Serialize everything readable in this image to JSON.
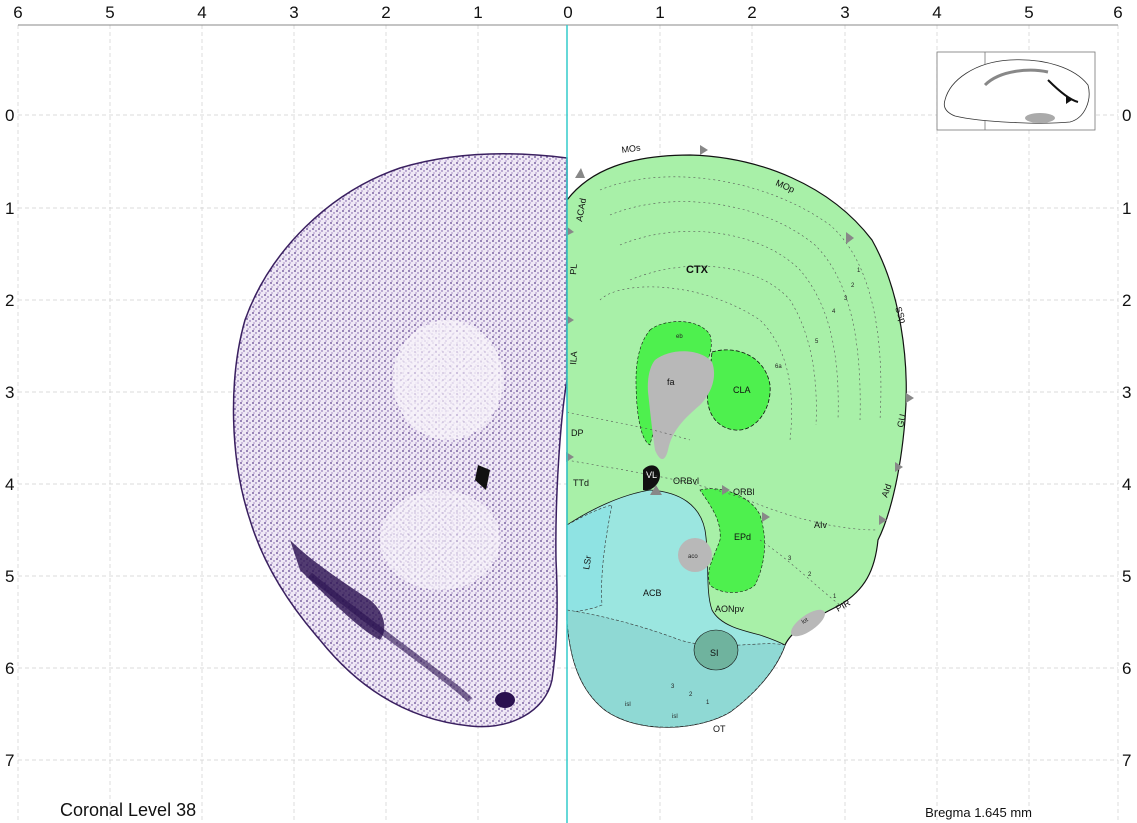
{
  "atlas": {
    "title": "Coronal Level 38",
    "bregma": "Bregma 1.645 mm",
    "x_ticks": [
      "6",
      "5",
      "4",
      "3",
      "2",
      "1",
      "0",
      "1",
      "2",
      "3",
      "4",
      "5",
      "6"
    ],
    "y_ticks": [
      "0",
      "1",
      "2",
      "3",
      "4",
      "5",
      "6",
      "7"
    ],
    "colors": {
      "cortex": "#a8f0a8",
      "cortex_bright": "#4ef04e",
      "striatum": "#9be6e0",
      "pallidum": "#8fd9d4",
      "fiber": "#b8b8b8",
      "nissl": "#5a3d8a",
      "midline": "#33cccc"
    },
    "regions": {
      "ctx": "CTX",
      "mos": "MOs",
      "mop": "MOp",
      "ssp": "SSp",
      "gu": "GU",
      "aid": "AId",
      "aiv": "AIv",
      "pir": "PIR",
      "lot": "lot",
      "acad": "ACAd",
      "pl": "PL",
      "ila": "ILA",
      "dp": "DP",
      "ttd": "TTd",
      "vl": "VL",
      "orbvl": "ORBvl",
      "orbl": "ORBl",
      "fa": "fa",
      "cla": "CLA",
      "epd": "EPd",
      "aco": "aco",
      "acb": "ACB",
      "lsr": "LSr",
      "aonpv": "AONpv",
      "si": "SI",
      "ot": "OT",
      "isl_a": "isl",
      "isl_b": "isl",
      "eb": "eb",
      "l6a": "6a",
      "l5": "5",
      "l4": "4",
      "l3": "3",
      "l2": "2",
      "l1": "1",
      "ot3": "3",
      "ot2": "2",
      "ot1": "1",
      "pir3": "3",
      "pir2": "2",
      "pir1": "1"
    }
  }
}
